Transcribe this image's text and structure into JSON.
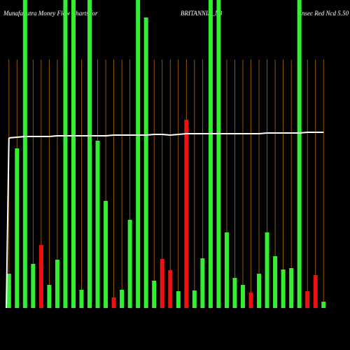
{
  "chart_data": {
    "type": "bar",
    "title": "MunafaSutra  Money Flow  Charts for",
    "subtitle": "BRITANNIA_N3",
    "note": "Unsec Red Ncd 5.50",
    "ylim": [
      0,
      440
    ],
    "values": [
      49,
      228,
      440,
      63,
      90,
      33,
      69,
      440,
      440,
      26,
      440,
      239,
      153,
      15,
      26,
      126,
      440,
      415,
      39,
      70,
      54,
      24,
      269,
      25,
      71,
      440,
      440,
      108,
      43,
      33,
      22,
      49,
      108,
      74,
      55,
      57,
      440,
      24,
      47,
      9
    ],
    "colors": [
      "#33ee33",
      "#33ee33",
      "#33ee33",
      "#33ee33",
      "#ee1111",
      "#33ee33",
      "#33ee33",
      "#33ee33",
      "#33ee33",
      "#33ee33",
      "#33ee33",
      "#33ee33",
      "#33ee33",
      "#ee1111",
      "#33ee33",
      "#33ee33",
      "#33ee33",
      "#33ee33",
      "#33ee33",
      "#ee1111",
      "#ee1111",
      "#33ee33",
      "#ee1111",
      "#33ee33",
      "#33ee33",
      "#33ee33",
      "#33ee33",
      "#33ee33",
      "#33ee33",
      "#33ee33",
      "#ee1111",
      "#33ee33",
      "#33ee33",
      "#33ee33",
      "#33ee33",
      "#33ee33",
      "#33ee33",
      "#ee1111",
      "#ee1111",
      "#33ee33"
    ],
    "line": {
      "color": "#ffffff",
      "values": [
        243,
        244,
        245,
        245,
        245,
        245,
        246,
        246,
        246,
        246,
        246,
        246,
        246,
        247,
        247,
        247,
        247,
        247,
        248,
        248,
        247,
        248,
        249,
        249,
        249,
        249,
        249,
        249,
        249,
        249,
        249,
        249,
        250,
        250,
        250,
        250,
        250,
        251,
        251,
        251
      ]
    }
  }
}
